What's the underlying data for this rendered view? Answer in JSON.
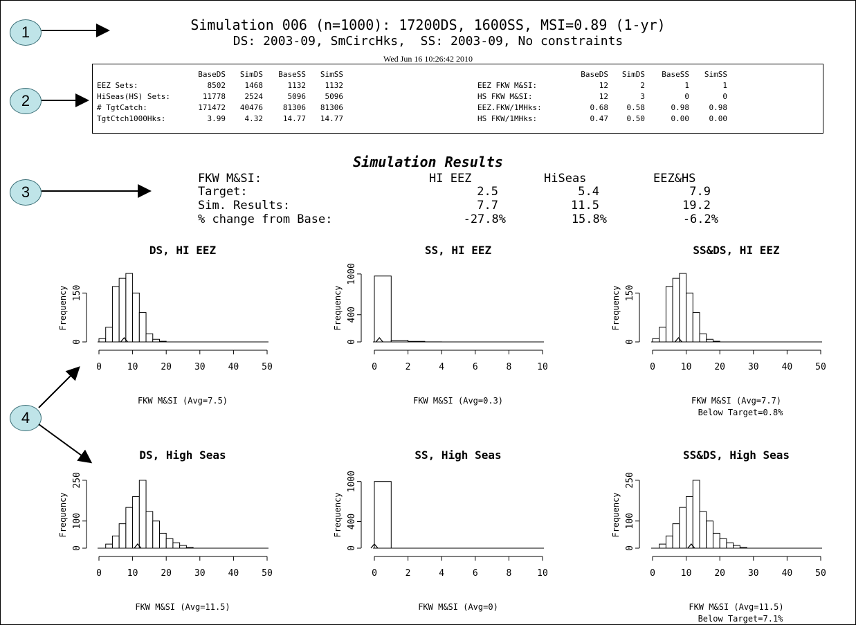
{
  "header": {
    "title_line1": "Simulation 006 (n=1000): 17200DS, 1600SS, MSI=0.89 (1-yr)",
    "title_line2": "DS: 2003-09, SmCircHks,  SS: 2003-09, No constraints",
    "timestamp": "Wed Jun 16 10:26:42 2010"
  },
  "callouts": [
    "1",
    "2",
    "3",
    "4"
  ],
  "info_table": {
    "left": {
      "headers": [
        "BaseDS",
        "SimDS",
        "BaseSS",
        "SimSS"
      ],
      "rows": [
        {
          "label": "EEZ Sets:",
          "values": [
            "8502",
            "1468",
            "1132",
            "1132"
          ]
        },
        {
          "label": "HiSeas(HS) Sets:",
          "values": [
            "11778",
            "2524",
            "5096",
            "5096"
          ]
        },
        {
          "label": "# TgtCatch:",
          "values": [
            "171472",
            "40476",
            "81306",
            "81306"
          ]
        },
        {
          "label": "TgtCtch1000Hks:",
          "values": [
            "3.99",
            "4.32",
            "14.77",
            "14.77"
          ]
        }
      ]
    },
    "right": {
      "headers": [
        "BaseDS",
        "SimDS",
        "BaseSS",
        "SimSS"
      ],
      "rows": [
        {
          "label": "EEZ FKW M&SI:",
          "values": [
            "12",
            "2",
            "1",
            "1"
          ]
        },
        {
          "label": "HS FKW M&SI:",
          "values": [
            "12",
            "3",
            "0",
            "0"
          ]
        },
        {
          "label": "EEZ.FKW/1MHks:",
          "values": [
            "0.68",
            "0.58",
            "0.98",
            "0.98"
          ]
        },
        {
          "label": "HS FKW/1MHks:",
          "values": [
            "0.47",
            "0.50",
            "0.00",
            "0.00"
          ]
        }
      ]
    }
  },
  "summary": {
    "title": "Simulation Results",
    "header_label": "FKW M&SI:",
    "columns": [
      "HI EEZ",
      "HiSeas",
      "EEZ&HS"
    ],
    "rows": [
      {
        "label": "Target:",
        "values": [
          "2.5",
          "5.4",
          "7.9"
        ]
      },
      {
        "label": "Sim. Results:",
        "values": [
          "7.7",
          "11.5",
          "19.2"
        ]
      },
      {
        "label": "% change from Base:",
        "values": [
          "-27.8%",
          "15.8%",
          "-6.2%"
        ]
      }
    ]
  },
  "chart_data": [
    {
      "type": "bar",
      "title": "DS, HI EEZ",
      "ylabel": "Frequency",
      "xlabel": "FKW M&SI  (Avg=7.5)",
      "note": "",
      "xlim": [
        0,
        50
      ],
      "ymax": 225,
      "bin_width": 2,
      "xticks": [
        "0",
        "10",
        "20",
        "30",
        "40",
        "50"
      ],
      "yticks": [
        0,
        150
      ],
      "ytick_labels": [
        "0",
        "150"
      ],
      "bins": [
        [
          0,
          10
        ],
        [
          2,
          45
        ],
        [
          4,
          170
        ],
        [
          6,
          195
        ],
        [
          8,
          210
        ],
        [
          10,
          150
        ],
        [
          12,
          90
        ],
        [
          14,
          25
        ],
        [
          16,
          8
        ],
        [
          18,
          2
        ]
      ],
      "marker": 7.5
    },
    {
      "type": "bar",
      "title": "SS, HI EEZ",
      "ylabel": "Frequency",
      "xlabel": "FKW M&SI  (Avg=0.3)",
      "note": "",
      "xlim": [
        0,
        10
      ],
      "ymax": 1080,
      "bin_width": 1,
      "xticks": [
        "0",
        "2",
        "4",
        "6",
        "8",
        "10"
      ],
      "yticks": [
        0,
        400,
        1000
      ],
      "ytick_labels": [
        "0",
        "400",
        "1000"
      ],
      "bins": [
        [
          0,
          970
        ],
        [
          1,
          25
        ],
        [
          2,
          8
        ],
        [
          3,
          1
        ]
      ],
      "marker": 0.3
    },
    {
      "type": "bar",
      "title": "SS&DS, HI EEZ",
      "ylabel": "Frequency",
      "xlabel": "FKW M&SI  (Avg=7.7)",
      "note": "Below Target=0.8%",
      "xlim": [
        0,
        50
      ],
      "ymax": 225,
      "bin_width": 2,
      "xticks": [
        "0",
        "10",
        "20",
        "30",
        "40",
        "50"
      ],
      "yticks": [
        0,
        150
      ],
      "ytick_labels": [
        "0",
        "150"
      ],
      "bins": [
        [
          0,
          10
        ],
        [
          2,
          45
        ],
        [
          4,
          170
        ],
        [
          6,
          195
        ],
        [
          8,
          210
        ],
        [
          10,
          150
        ],
        [
          12,
          90
        ],
        [
          14,
          25
        ],
        [
          16,
          8
        ],
        [
          18,
          2
        ]
      ],
      "marker": 7.7
    },
    {
      "type": "bar",
      "title": "DS, High Seas",
      "ylabel": "Frequency",
      "xlabel": "FKW M&SI  (Avg=11.5)",
      "note": "",
      "xlim": [
        0,
        50
      ],
      "ymax": 265,
      "bin_width": 2,
      "xticks": [
        "0",
        "10",
        "20",
        "30",
        "40",
        "50"
      ],
      "yticks": [
        0,
        100,
        250
      ],
      "ytick_labels": [
        "0",
        "100",
        "250"
      ],
      "bins": [
        [
          2,
          15
        ],
        [
          4,
          45
        ],
        [
          6,
          90
        ],
        [
          8,
          150
        ],
        [
          10,
          190
        ],
        [
          12,
          250
        ],
        [
          14,
          135
        ],
        [
          16,
          100
        ],
        [
          18,
          55
        ],
        [
          20,
          35
        ],
        [
          22,
          20
        ],
        [
          24,
          10
        ],
        [
          26,
          3
        ]
      ],
      "marker": 11.5
    },
    {
      "type": "bar",
      "title": "SS, High Seas",
      "ylabel": "Frequency",
      "xlabel": "FKW M&SI  (Avg=0)",
      "note": "",
      "xlim": [
        0,
        10
      ],
      "ymax": 1080,
      "bin_width": 1,
      "xticks": [
        "0",
        "2",
        "4",
        "6",
        "8",
        "10"
      ],
      "yticks": [
        0,
        400,
        1000
      ],
      "ytick_labels": [
        "0",
        "400",
        "1000"
      ],
      "bins": [
        [
          0,
          1000
        ]
      ],
      "marker": 0
    },
    {
      "type": "bar",
      "title": "SS&DS, High Seas",
      "ylabel": "Frequency",
      "xlabel": "FKW M&SI  (Avg=11.5)",
      "note": "Below Target=7.1%",
      "xlim": [
        0,
        50
      ],
      "ymax": 265,
      "bin_width": 2,
      "xticks": [
        "0",
        "10",
        "20",
        "30",
        "40",
        "50"
      ],
      "yticks": [
        0,
        100,
        250
      ],
      "ytick_labels": [
        "0",
        "100",
        "250"
      ],
      "bins": [
        [
          2,
          15
        ],
        [
          4,
          45
        ],
        [
          6,
          90
        ],
        [
          8,
          150
        ],
        [
          10,
          190
        ],
        [
          12,
          250
        ],
        [
          14,
          135
        ],
        [
          16,
          100
        ],
        [
          18,
          55
        ],
        [
          20,
          35
        ],
        [
          22,
          20
        ],
        [
          24,
          10
        ],
        [
          26,
          3
        ]
      ],
      "marker": 11.5
    }
  ]
}
